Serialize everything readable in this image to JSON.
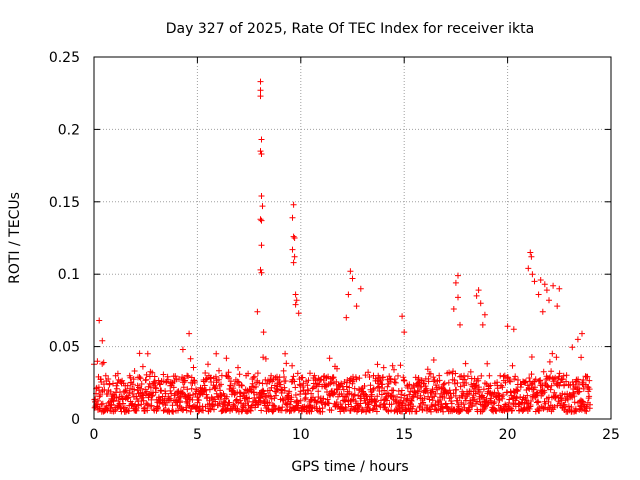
{
  "chart_data": {
    "type": "scatter",
    "title": "Day 327 of 2025, Rate Of TEC Index for receiver ikta",
    "xlabel": "GPS time / hours",
    "ylabel": "ROTI / TECUs",
    "xlim": [
      0,
      25
    ],
    "ylim": [
      0,
      0.25
    ],
    "xticks": [
      0,
      5,
      10,
      15,
      20,
      25
    ],
    "xtick_labels": [
      "0",
      "5",
      "10",
      "15",
      "20",
      "25"
    ],
    "yticks": [
      0,
      0.05,
      0.1,
      0.15,
      0.2,
      0.25
    ],
    "ytick_labels": [
      "0",
      "0.05",
      "0.1",
      "0.15",
      "0.2",
      "0.25"
    ],
    "grid": true,
    "marker": "+",
    "marker_color": "#ff0000",
    "series": [
      {
        "name": "ROTI",
        "x_range": [
          0,
          24
        ],
        "baseline_band": [
          0.005,
          0.03
        ],
        "notable_points": [
          [
            0.25,
            0.068
          ],
          [
            0.4,
            0.054
          ],
          [
            2.6,
            0.045
          ],
          [
            4.3,
            0.048
          ],
          [
            4.6,
            0.059
          ],
          [
            6.4,
            0.042
          ],
          [
            8.05,
            0.233
          ],
          [
            8.05,
            0.227
          ],
          [
            8.05,
            0.223
          ],
          [
            8.1,
            0.193
          ],
          [
            8.05,
            0.185
          ],
          [
            8.1,
            0.183
          ],
          [
            8.1,
            0.154
          ],
          [
            8.15,
            0.147
          ],
          [
            8.05,
            0.138
          ],
          [
            8.1,
            0.137
          ],
          [
            8.1,
            0.12
          ],
          [
            8.05,
            0.103
          ],
          [
            8.1,
            0.101
          ],
          [
            7.9,
            0.074
          ],
          [
            8.2,
            0.06
          ],
          [
            9.65,
            0.148
          ],
          [
            9.6,
            0.139
          ],
          [
            9.65,
            0.126
          ],
          [
            9.7,
            0.125
          ],
          [
            9.6,
            0.117
          ],
          [
            9.7,
            0.112
          ],
          [
            9.65,
            0.108
          ],
          [
            9.75,
            0.086
          ],
          [
            9.8,
            0.082
          ],
          [
            9.75,
            0.079
          ],
          [
            9.9,
            0.073
          ],
          [
            12.4,
            0.102
          ],
          [
            12.5,
            0.097
          ],
          [
            12.3,
            0.086
          ],
          [
            12.9,
            0.09
          ],
          [
            12.7,
            0.078
          ],
          [
            12.2,
            0.07
          ],
          [
            14.9,
            0.071
          ],
          [
            15.0,
            0.06
          ],
          [
            17.6,
            0.099
          ],
          [
            17.5,
            0.094
          ],
          [
            17.6,
            0.084
          ],
          [
            17.4,
            0.076
          ],
          [
            17.7,
            0.065
          ],
          [
            18.6,
            0.089
          ],
          [
            18.5,
            0.085
          ],
          [
            18.7,
            0.08
          ],
          [
            18.9,
            0.072
          ],
          [
            18.8,
            0.065
          ],
          [
            20.0,
            0.064
          ],
          [
            20.3,
            0.062
          ],
          [
            21.1,
            0.115
          ],
          [
            21.15,
            0.112
          ],
          [
            21.0,
            0.104
          ],
          [
            21.2,
            0.1
          ],
          [
            21.3,
            0.095
          ],
          [
            21.6,
            0.096
          ],
          [
            21.8,
            0.093
          ],
          [
            21.9,
            0.089
          ],
          [
            22.2,
            0.092
          ],
          [
            21.5,
            0.086
          ],
          [
            22.0,
            0.082
          ],
          [
            22.5,
            0.09
          ],
          [
            22.4,
            0.078
          ],
          [
            21.7,
            0.074
          ],
          [
            23.6,
            0.059
          ],
          [
            23.4,
            0.055
          ]
        ]
      }
    ]
  }
}
